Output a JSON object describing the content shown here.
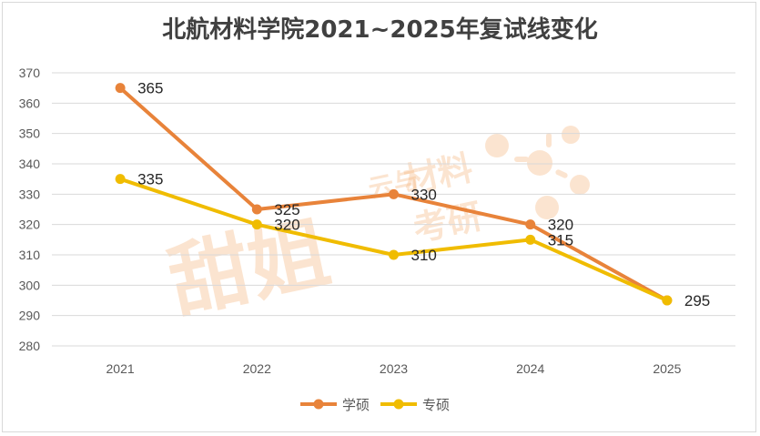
{
  "chart_data": {
    "type": "line",
    "title": "北航材料学院2021~2025年复试线变化",
    "x": [
      "2021",
      "2022",
      "2023",
      "2024",
      "2025"
    ],
    "ylim": [
      280,
      370
    ],
    "yticks": [
      280,
      290,
      300,
      310,
      320,
      330,
      340,
      350,
      360,
      370
    ],
    "grid": true,
    "legend_position": "bottom",
    "series": [
      {
        "name": "学硕",
        "color": "#e8833a",
        "values": [
          365,
          325,
          330,
          320,
          295
        ]
      },
      {
        "name": "专硕",
        "color": "#f0bc00",
        "values": [
          335,
          320,
          310,
          315,
          295
        ]
      }
    ]
  },
  "watermark": {
    "big_text": "甜姐",
    "small_text_top": "材料",
    "small_text_bottom": "考研",
    "side_text": "云与"
  }
}
